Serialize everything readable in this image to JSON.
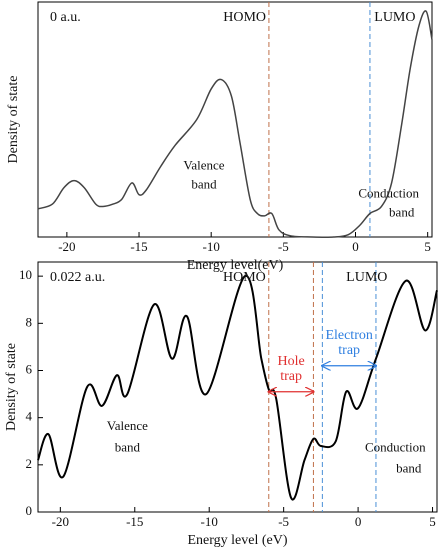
{
  "chart_data": [
    {
      "type": "line",
      "panel_label": "0 a.u.",
      "xlabel": "Energy level(eV)",
      "ylabel": "Density of state",
      "xlim": [
        -22,
        5.3
      ],
      "ylim": [
        0,
        10
      ],
      "xticks": [
        -20,
        -15,
        -10,
        -5,
        0,
        5
      ],
      "x": [
        -22,
        -21,
        -20.2,
        -19.5,
        -18.8,
        -18,
        -17.5,
        -16.8,
        -16.2,
        -15.5,
        -15,
        -14.5,
        -13.5,
        -12.5,
        -11,
        -10,
        -9.3,
        -8.6,
        -8,
        -7.3,
        -6.8,
        -6.3,
        -5.8,
        -5.3,
        -4.5,
        -3,
        -1.5,
        -0.5,
        0.3,
        1,
        1.8,
        2.5,
        3.2,
        3.8,
        4.4,
        4.9,
        5.3
      ],
      "series": [
        {
          "name": "0 a.u.",
          "color": "#444444",
          "values": [
            1.2,
            1.4,
            2.1,
            2.4,
            2.1,
            1.4,
            1.3,
            1.4,
            1.6,
            2.3,
            1.8,
            2.0,
            3.0,
            3.9,
            5.0,
            6.3,
            6.7,
            6.0,
            4.0,
            1.6,
            1.0,
            0.9,
            1.0,
            0.3,
            0.05,
            0.0,
            0.0,
            0.1,
            0.5,
            1.0,
            1.3,
            2.3,
            4.8,
            7.2,
            9.0,
            9.6,
            8.4
          ]
        }
      ],
      "vlines": [
        {
          "x": -6,
          "color": "#c0704a"
        },
        {
          "x": 1,
          "color": "#4a8fd6"
        }
      ],
      "annotations": [
        "HOMO",
        "LUMO",
        "Valence",
        "band",
        "Conduction",
        "band"
      ]
    },
    {
      "type": "line",
      "panel_label": "0.022 a.u.",
      "xlabel": "Energy level (eV)",
      "ylabel": "Density of state",
      "xlim": [
        -21.5,
        5.3
      ],
      "ylim": [
        0,
        10.6
      ],
      "xticks": [
        -20,
        -15,
        -10,
        -5,
        0,
        5
      ],
      "yticks": [
        0,
        2,
        4,
        6,
        8,
        10
      ],
      "x": [
        -21.5,
        -20.8,
        -19.8,
        -18.2,
        -17.2,
        -16.2,
        -15.5,
        -13.7,
        -12.5,
        -11.5,
        -10.2,
        -7.6,
        -6.5,
        -6,
        -5.5,
        -4.5,
        -3.6,
        -3,
        -2.5,
        -1.5,
        -0.8,
        0,
        1.2,
        3.2,
        4.5,
        5.3
      ],
      "series": [
        {
          "name": "0.022 a.u.",
          "color": "#000000",
          "values": [
            2.2,
            3.3,
            1.5,
            5.3,
            4.5,
            5.8,
            5.0,
            8.8,
            6.5,
            8.3,
            5.0,
            10.0,
            6.5,
            5.2,
            4.8,
            0.6,
            2.2,
            3.1,
            2.8,
            3.0,
            5.1,
            4.4,
            6.5,
            9.8,
            7.7,
            9.4
          ]
        }
      ],
      "vlines": [
        {
          "x": -6,
          "color": "#c0704a"
        },
        {
          "x": -3,
          "color": "#c0704a"
        },
        {
          "x": -2.4,
          "color": "#4a8fd6"
        },
        {
          "x": 1.2,
          "color": "#4a8fd6"
        }
      ],
      "traps": [
        {
          "from": -6,
          "to": -3,
          "y": 5.1,
          "color": "#e03030",
          "label": [
            "Hole",
            "trap"
          ]
        },
        {
          "from": -2.4,
          "to": 1.2,
          "y": 6.2,
          "color": "#2f7fe0",
          "label": [
            "Electron",
            "trap"
          ]
        }
      ],
      "annotations": [
        "HOMO",
        "LUMO",
        "Valence",
        "band",
        "Conduction",
        "band"
      ]
    }
  ]
}
